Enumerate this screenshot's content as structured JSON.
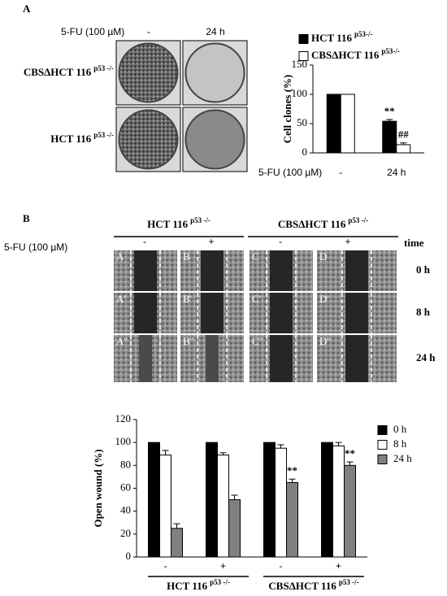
{
  "panel_a": {
    "label": "A",
    "treatment": "5-FU (100 µM)",
    "columns": [
      "-",
      "24 h"
    ],
    "rows": [
      {
        "name": "CBSΔHCT 116",
        "sup": "p53 -/-"
      },
      {
        "name": "HCT 116",
        "sup": "p53 -/-"
      }
    ]
  },
  "panel_b": {
    "label": "B",
    "groups": [
      {
        "name": "HCT 116",
        "sup": "p53 -/-"
      },
      {
        "name": "CBSΔHCT 116",
        "sup": "p53 -/-"
      }
    ],
    "treatment": "5-FU (100 µM)",
    "columns": [
      "-",
      "+",
      "-",
      "+"
    ],
    "time_header": "time",
    "times": [
      "0 h",
      "8 h",
      "24 h"
    ],
    "cells": [
      [
        "A",
        "B",
        "C",
        "D"
      ],
      [
        "A'",
        "B'",
        "C'",
        "D'"
      ],
      [
        "A''",
        "B''",
        "C''",
        "D''"
      ]
    ]
  },
  "chart_data": [
    {
      "type": "bar",
      "y_label": "Cell clones (%)",
      "x_label": "5-FU (100 µM)",
      "categories": [
        "-",
        "24 h"
      ],
      "series": [
        {
          "name": "HCT 116",
          "name_sup": "p53-/-",
          "color": "#000000",
          "values": [
            100,
            54
          ],
          "errors": [
            0,
            3
          ],
          "annotations": [
            null,
            "**"
          ]
        },
        {
          "name": "CBSΔHCT 116",
          "name_sup": "p53-/-",
          "color": "#ffffff",
          "values": [
            100,
            14
          ],
          "errors": [
            0,
            3
          ],
          "annotations": [
            null,
            "##"
          ]
        }
      ],
      "ylim": [
        0,
        150
      ],
      "yticks": [
        0,
        50,
        100,
        150
      ]
    },
    {
      "type": "bar",
      "y_label": "Open wound (%)",
      "categories": [
        "-",
        "+",
        "-",
        "+"
      ],
      "groups": [
        {
          "name": "HCT 116",
          "sup": "p53 -/-"
        },
        {
          "name": "CBSΔHCT 116",
          "sup": "p53 -/-"
        }
      ],
      "series": [
        {
          "name": "0 h",
          "color": "#000000",
          "values": [
            100,
            100,
            100,
            100
          ],
          "errors": [
            0,
            0,
            0,
            0
          ],
          "annotations": [
            null,
            null,
            null,
            null
          ]
        },
        {
          "name": "8 h",
          "color": "#ffffff",
          "values": [
            89,
            89,
            95,
            97
          ],
          "errors": [
            4,
            2,
            3,
            3
          ],
          "annotations": [
            null,
            null,
            null,
            null
          ]
        },
        {
          "name": "24 h",
          "color": "#808080",
          "values": [
            25,
            50,
            65,
            80
          ],
          "errors": [
            4,
            4,
            3,
            3
          ],
          "annotations": [
            null,
            null,
            "**",
            "**"
          ]
        }
      ],
      "ylim": [
        0,
        120
      ],
      "yticks": [
        0,
        20,
        40,
        60,
        80,
        100,
        120
      ]
    }
  ]
}
